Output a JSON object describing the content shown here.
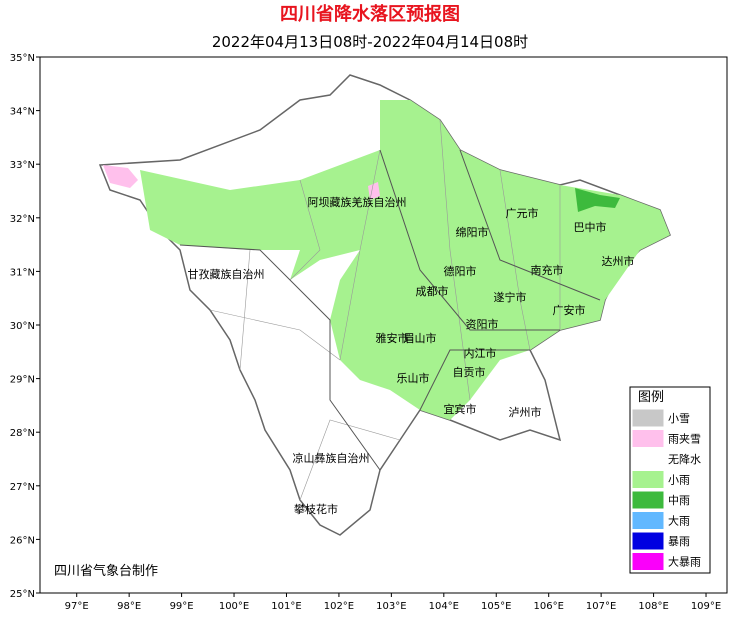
{
  "header": {
    "title": "四川省降水落区预报图",
    "subtitle": "2022年04月13日08时-2022年04月14日08时"
  },
  "map": {
    "xlim": [
      96.3,
      109.4
    ],
    "ylim": [
      25,
      35
    ],
    "xticks": [
      {
        "value": 97,
        "label": "97°E"
      },
      {
        "value": 98,
        "label": "98°E"
      },
      {
        "value": 99,
        "label": "99°E"
      },
      {
        "value": 100,
        "label": "100°E"
      },
      {
        "value": 101,
        "label": "101°E"
      },
      {
        "value": 102,
        "label": "102°E"
      },
      {
        "value": 103,
        "label": "103°E"
      },
      {
        "value": 104,
        "label": "104°E"
      },
      {
        "value": 105,
        "label": "105°E"
      },
      {
        "value": 106,
        "label": "106°E"
      },
      {
        "value": 107,
        "label": "107°E"
      },
      {
        "value": 108,
        "label": "108°E"
      },
      {
        "value": 109,
        "label": "109°E"
      }
    ],
    "yticks": [
      {
        "value": 25,
        "label": "25°N"
      },
      {
        "value": 26,
        "label": "26°N"
      },
      {
        "value": 27,
        "label": "27°N"
      },
      {
        "value": 28,
        "label": "28°N"
      },
      {
        "value": 29,
        "label": "29°N"
      },
      {
        "value": 30,
        "label": "30°N"
      },
      {
        "value": 31,
        "label": "31°N"
      },
      {
        "value": 32,
        "label": "32°N"
      },
      {
        "value": 33,
        "label": "33°N"
      },
      {
        "value": 34,
        "label": "34°N"
      },
      {
        "value": 35,
        "label": "35°N"
      }
    ],
    "cities": [
      "阿坝藏族羌族自治州",
      "广元市",
      "绵阳市",
      "巴中市",
      "甘孜藏族自治州",
      "德阳市",
      "南充市",
      "达州市",
      "成都市",
      "遂宁市",
      "广安市",
      "资阳市",
      "雅安市",
      "眉山市",
      "内江市",
      "自贡市",
      "乐山市",
      "宜宾市",
      "泸州市",
      "凉山彝族自治州",
      "攀枝花市"
    ],
    "credit": "四川省气象台制作"
  },
  "legend": {
    "title": "图例",
    "items": [
      {
        "label": "小雪",
        "color": "#c8c8c8"
      },
      {
        "label": "雨夹雪",
        "color": "#ffc0ec"
      },
      {
        "label": "无降水",
        "color": "#ffffff"
      },
      {
        "label": "小雨",
        "color": "#a6f28f"
      },
      {
        "label": "中雨",
        "color": "#3dba3d"
      },
      {
        "label": "大雨",
        "color": "#61b8ff"
      },
      {
        "label": "暴雨",
        "color": "#0000e1"
      },
      {
        "label": "大暴雨",
        "color": "#fa00fa"
      }
    ]
  }
}
